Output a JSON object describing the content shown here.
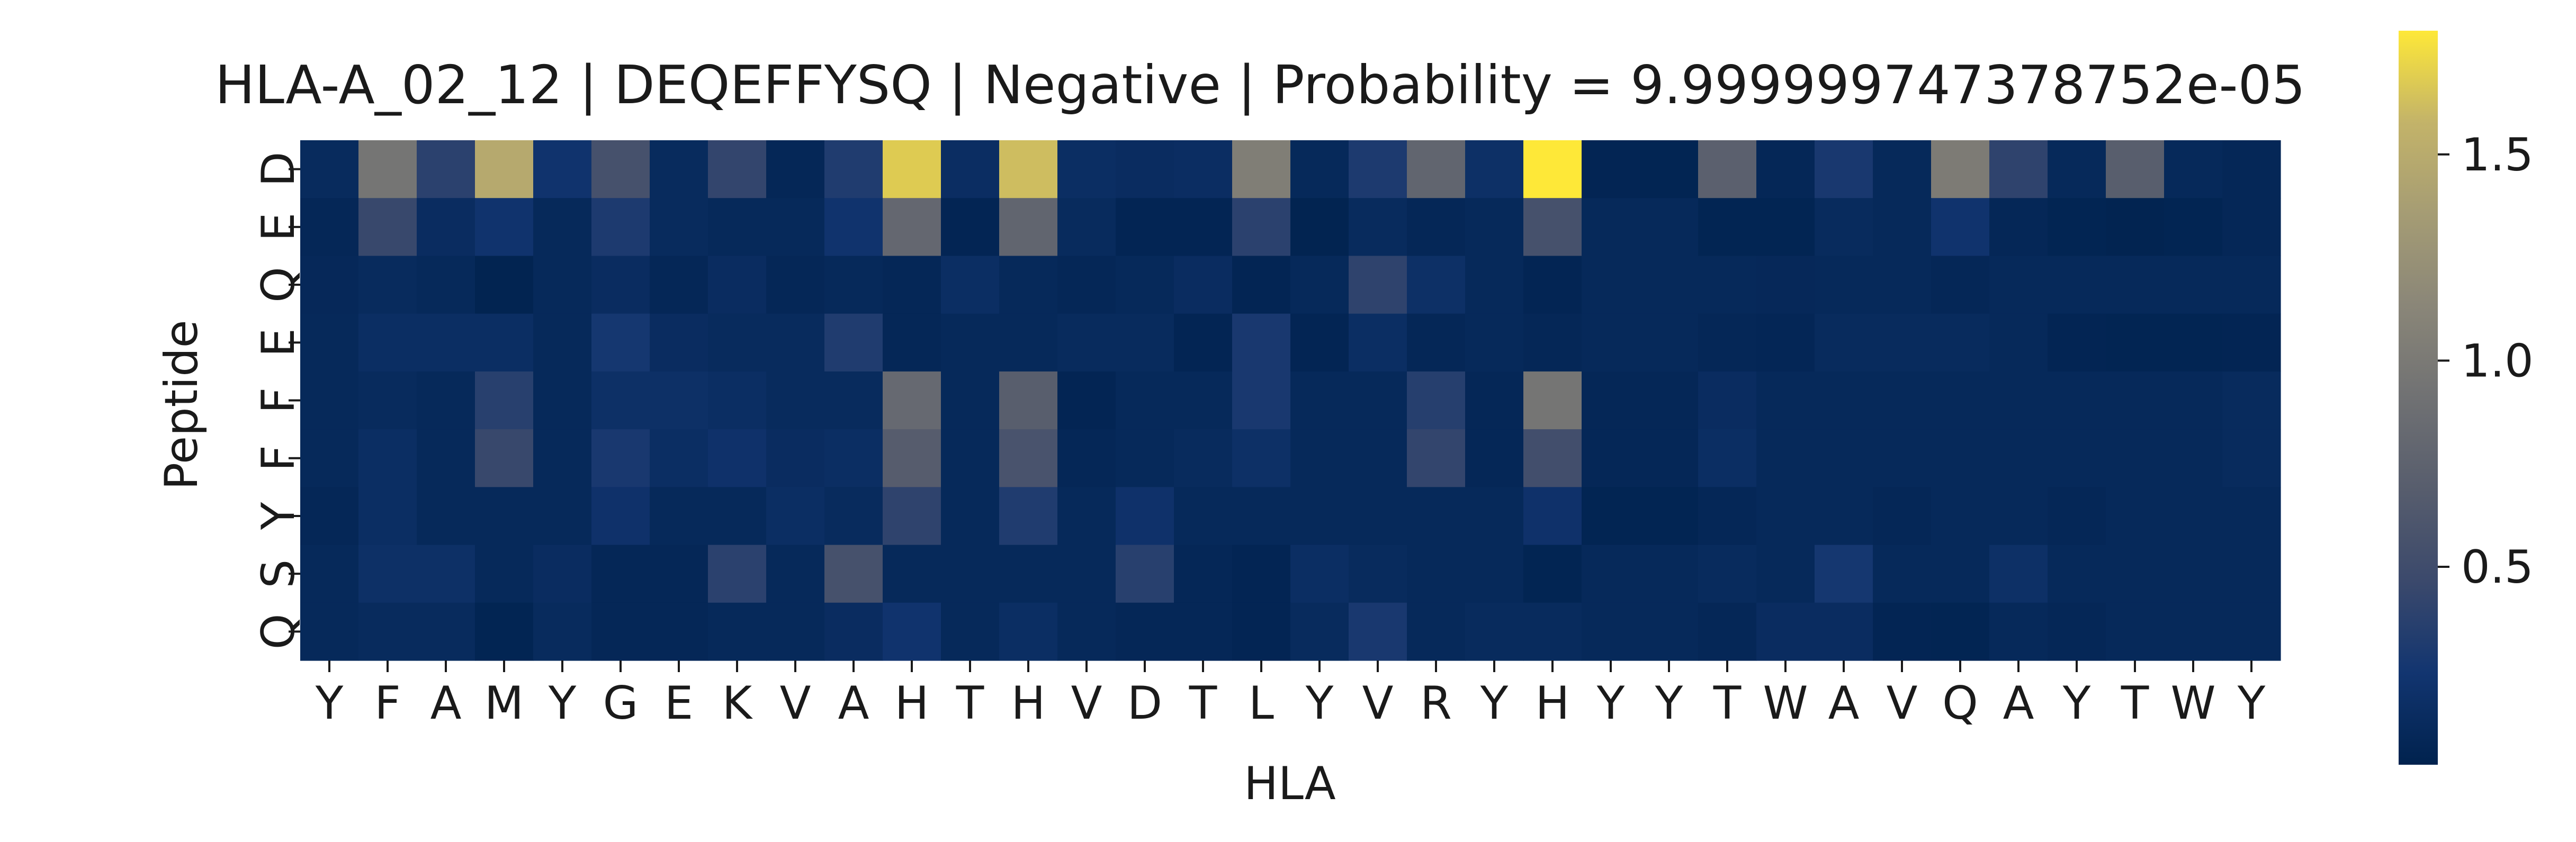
{
  "chart_data": {
    "type": "heatmap",
    "title": "HLA-A_02_12 | DEQEFFYSQ | Negative | Probability = 9.999999747378752e-05",
    "xlabel": "HLA",
    "ylabel": "Peptide",
    "x_categories": [
      "Y",
      "F",
      "A",
      "M",
      "Y",
      "G",
      "E",
      "K",
      "V",
      "A",
      "H",
      "T",
      "H",
      "V",
      "D",
      "T",
      "L",
      "Y",
      "V",
      "R",
      "Y",
      "H",
      "Y",
      "Y",
      "T",
      "W",
      "A",
      "V",
      "Q",
      "A",
      "Y",
      "T",
      "W",
      "Y"
    ],
    "y_categories": [
      "D",
      "E",
      "Q",
      "E",
      "F",
      "F",
      "Y",
      "S",
      "Q"
    ],
    "colormap": "cividis",
    "vmin": 0.02,
    "vmax": 1.8,
    "colorbar_ticks": [
      0.5,
      1.0,
      1.5
    ],
    "colorbar_ticklabels": [
      "0.5",
      "1.0",
      "1.5"
    ],
    "values": [
      [
        0.12,
        0.95,
        0.38,
        1.48,
        0.22,
        0.55,
        0.12,
        0.42,
        0.08,
        0.32,
        1.68,
        0.15,
        1.62,
        0.16,
        0.14,
        0.15,
        1.05,
        0.1,
        0.3,
        0.78,
        0.18,
        1.8,
        0.06,
        0.05,
        0.72,
        0.08,
        0.28,
        0.1,
        1.02,
        0.4,
        0.1,
        0.7,
        0.1,
        0.08
      ],
      [
        0.08,
        0.45,
        0.14,
        0.22,
        0.1,
        0.3,
        0.12,
        0.1,
        0.1,
        0.22,
        0.8,
        0.06,
        0.78,
        0.12,
        0.06,
        0.06,
        0.38,
        0.04,
        0.12,
        0.08,
        0.1,
        0.55,
        0.1,
        0.1,
        0.05,
        0.05,
        0.12,
        0.1,
        0.22,
        0.08,
        0.05,
        0.04,
        0.05,
        0.08
      ],
      [
        0.09,
        0.12,
        0.1,
        0.04,
        0.1,
        0.14,
        0.08,
        0.14,
        0.08,
        0.1,
        0.08,
        0.16,
        0.1,
        0.08,
        0.1,
        0.14,
        0.06,
        0.1,
        0.4,
        0.18,
        0.1,
        0.06,
        0.1,
        0.1,
        0.1,
        0.09,
        0.1,
        0.1,
        0.08,
        0.1,
        0.1,
        0.1,
        0.1,
        0.1
      ],
      [
        0.1,
        0.16,
        0.16,
        0.16,
        0.1,
        0.26,
        0.14,
        0.12,
        0.12,
        0.32,
        0.08,
        0.1,
        0.1,
        0.12,
        0.12,
        0.06,
        0.28,
        0.06,
        0.16,
        0.08,
        0.1,
        0.08,
        0.1,
        0.1,
        0.08,
        0.07,
        0.12,
        0.12,
        0.12,
        0.1,
        0.06,
        0.05,
        0.05,
        0.06
      ],
      [
        0.1,
        0.12,
        0.1,
        0.36,
        0.1,
        0.18,
        0.18,
        0.16,
        0.12,
        0.12,
        0.82,
        0.1,
        0.7,
        0.06,
        0.1,
        0.1,
        0.28,
        0.1,
        0.1,
        0.35,
        0.08,
        0.95,
        0.08,
        0.08,
        0.14,
        0.1,
        0.1,
        0.1,
        0.1,
        0.1,
        0.1,
        0.1,
        0.1,
        0.12
      ],
      [
        0.1,
        0.16,
        0.1,
        0.45,
        0.1,
        0.28,
        0.16,
        0.2,
        0.14,
        0.16,
        0.68,
        0.1,
        0.58,
        0.08,
        0.1,
        0.12,
        0.18,
        0.1,
        0.1,
        0.42,
        0.08,
        0.52,
        0.08,
        0.08,
        0.16,
        0.1,
        0.1,
        0.1,
        0.1,
        0.1,
        0.1,
        0.1,
        0.1,
        0.12
      ],
      [
        0.08,
        0.16,
        0.1,
        0.1,
        0.1,
        0.2,
        0.1,
        0.1,
        0.16,
        0.12,
        0.4,
        0.1,
        0.32,
        0.1,
        0.2,
        0.1,
        0.1,
        0.1,
        0.1,
        0.1,
        0.1,
        0.2,
        0.05,
        0.05,
        0.08,
        0.1,
        0.1,
        0.08,
        0.1,
        0.1,
        0.08,
        0.1,
        0.1,
        0.1
      ],
      [
        0.1,
        0.18,
        0.18,
        0.1,
        0.14,
        0.08,
        0.08,
        0.38,
        0.1,
        0.55,
        0.1,
        0.1,
        0.1,
        0.1,
        0.36,
        0.08,
        0.06,
        0.16,
        0.12,
        0.1,
        0.1,
        0.05,
        0.1,
        0.1,
        0.12,
        0.1,
        0.26,
        0.1,
        0.1,
        0.18,
        0.1,
        0.1,
        0.1,
        0.1
      ],
      [
        0.1,
        0.12,
        0.12,
        0.05,
        0.12,
        0.08,
        0.08,
        0.1,
        0.1,
        0.14,
        0.22,
        0.1,
        0.16,
        0.1,
        0.08,
        0.08,
        0.06,
        0.12,
        0.28,
        0.1,
        0.12,
        0.12,
        0.1,
        0.1,
        0.08,
        0.14,
        0.14,
        0.06,
        0.05,
        0.1,
        0.08,
        0.1,
        0.1,
        0.1
      ]
    ]
  }
}
